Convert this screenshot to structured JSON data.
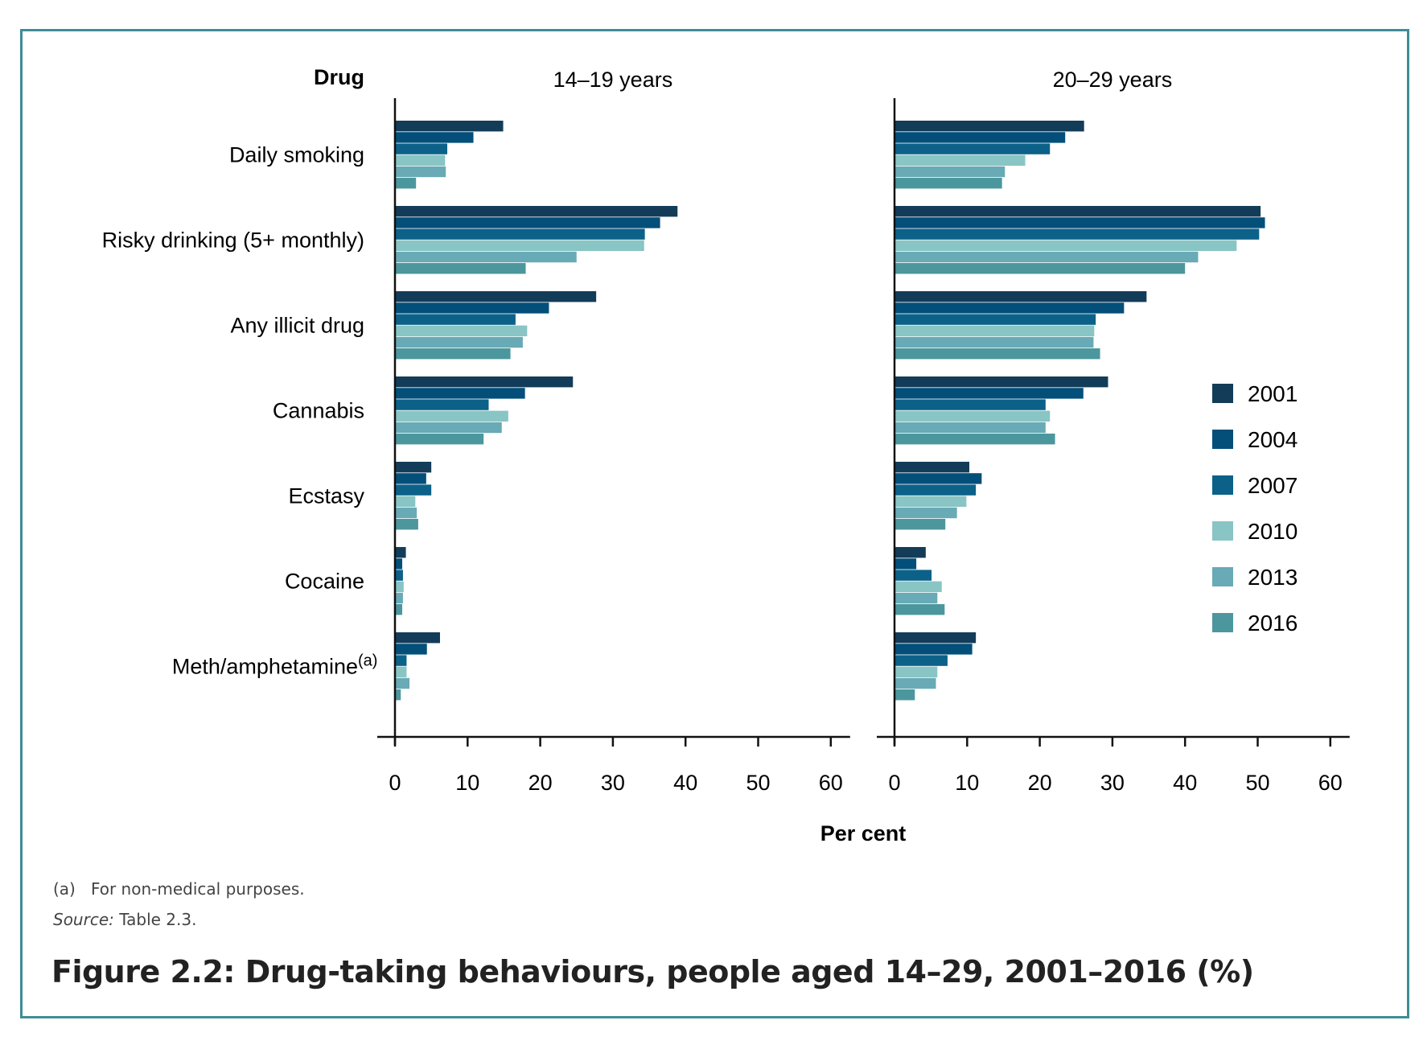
{
  "chart_data": {
    "type": "bar",
    "orientation": "horizontal",
    "category_header": "Drug",
    "xlabel": "Per cent",
    "xlim": [
      0,
      60
    ],
    "xticks": [
      0,
      10,
      20,
      30,
      40,
      50,
      60
    ],
    "grid": false,
    "legend_position": "right",
    "categories": [
      "Daily smoking",
      "Risky drinking (5+ monthly)",
      "Any illicit drug",
      "Cannabis",
      "Ecstasy",
      "Cocaine",
      "Meth/amphetamine"
    ],
    "category_superscripts": [
      "",
      "",
      "",
      "",
      "",
      "",
      "(a)"
    ],
    "series_colors": {
      "2001": "#133c59",
      "2004": "#034f7a",
      "2007": "#0c6189",
      "2010": "#88c5c4",
      "2013": "#68aab5",
      "2016": "#4c979d"
    },
    "panels": [
      {
        "title": "14–19 years",
        "series": [
          {
            "name": "2001",
            "values": [
              14.9,
              38.9,
              27.7,
              24.5,
              5.0,
              1.5,
              6.2
            ]
          },
          {
            "name": "2004",
            "values": [
              10.8,
              36.5,
              21.2,
              17.9,
              4.3,
              1.0,
              4.4
            ]
          },
          {
            "name": "2007",
            "values": [
              7.2,
              34.4,
              16.6,
              12.9,
              5.0,
              1.1,
              1.6
            ]
          },
          {
            "name": "2010",
            "values": [
              6.9,
              34.3,
              18.2,
              15.6,
              2.8,
              1.2,
              1.6
            ]
          },
          {
            "name": "2013",
            "values": [
              7.0,
              25.0,
              17.6,
              14.7,
              3.0,
              1.1,
              2.0
            ]
          },
          {
            "name": "2016",
            "values": [
              2.9,
              18.0,
              15.9,
              12.2,
              3.2,
              1.0,
              0.8
            ]
          }
        ]
      },
      {
        "title": "20–29 years",
        "series": [
          {
            "name": "2001",
            "values": [
              26.1,
              50.4,
              34.7,
              29.4,
              10.3,
              4.3,
              11.2
            ]
          },
          {
            "name": "2004",
            "values": [
              23.5,
              51.0,
              31.6,
              26.0,
              12.0,
              3.0,
              10.7
            ]
          },
          {
            "name": "2007",
            "values": [
              21.4,
              50.2,
              27.7,
              20.8,
              11.2,
              5.1,
              7.3
            ]
          },
          {
            "name": "2010",
            "values": [
              18.0,
              47.1,
              27.5,
              21.4,
              9.9,
              6.5,
              5.9
            ]
          },
          {
            "name": "2013",
            "values": [
              15.2,
              41.8,
              27.4,
              20.8,
              8.6,
              5.9,
              5.7
            ]
          },
          {
            "name": "2016",
            "values": [
              14.8,
              40.0,
              28.3,
              22.1,
              7.0,
              6.9,
              2.8
            ]
          }
        ]
      }
    ]
  },
  "footnotes": {
    "note_marker": "(a)",
    "note_text": "For non-medical purposes.",
    "source_label": "Source:",
    "source_text": "Table 2.3."
  },
  "figure_title": "Figure 2.2: Drug-taking behaviours, people aged 14–29, 2001–2016 (%)"
}
